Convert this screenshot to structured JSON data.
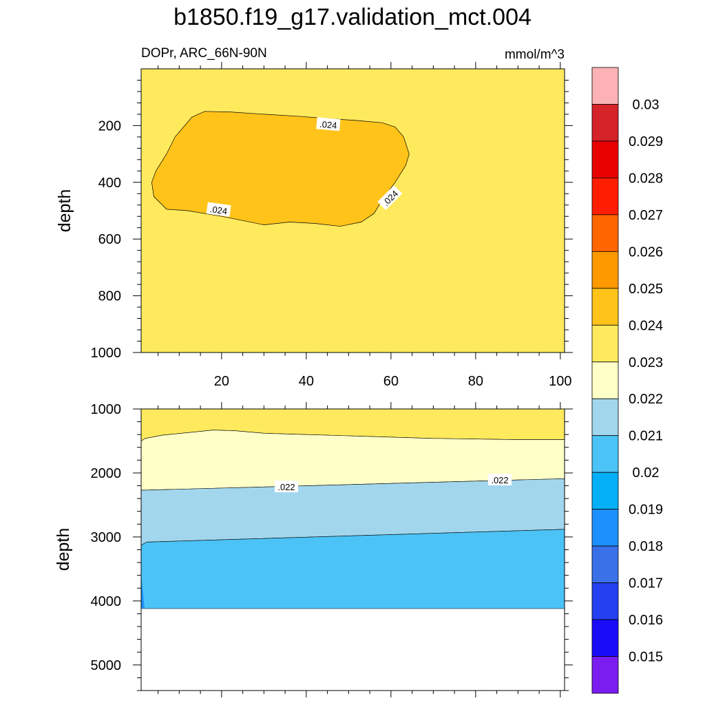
{
  "title": "b1850.f19_g17.validation_mct.004",
  "subtitle_left": "DOPr, ARC_66N-90N",
  "subtitle_right": "mmol/m^3",
  "colorbar": {
    "labels": [
      "0.03",
      "0.029",
      "0.028",
      "0.027",
      "0.026",
      "0.025",
      "0.024",
      "0.023",
      "0.022",
      "0.021",
      "0.02",
      "0.019",
      "0.018",
      "0.017",
      "0.016",
      "0.015"
    ],
    "colors": [
      "#fdb2b5",
      "#d5232a",
      "#e60000",
      "#ff1e00",
      "#ff6600",
      "#ff9900",
      "#ffc31a",
      "#ffea5d",
      "#ffffc8",
      "#a2d6ed",
      "#4bc3f6",
      "#03b0f8",
      "#1e90fd",
      "#3a70e8",
      "#2540f0",
      "#1a0cf6",
      "#7b1df0"
    ]
  },
  "chart_data": [
    {
      "type": "contour",
      "panel": "top",
      "xlabel": "",
      "ylabel": "depth",
      "xlim": [
        1,
        101
      ],
      "ylim": [
        1000,
        0
      ],
      "xticks": [
        "20",
        "40",
        "60",
        "80",
        "100"
      ],
      "yticks": [
        "200",
        "400",
        "600",
        "800",
        "1000"
      ],
      "background_level": "0.023-0.024",
      "contour_labels": [
        ".024",
        ".024",
        ".024"
      ],
      "regions": [
        {
          "level": "0.024-0.025",
          "color": "#ffc31a",
          "x_range": [
            4,
            65
          ],
          "depth_range": [
            150,
            560
          ]
        }
      ]
    },
    {
      "type": "contour",
      "panel": "bottom",
      "xlabel": "",
      "ylabel": "depth",
      "xlim": [
        1,
        101
      ],
      "ylim": [
        5400,
        1000
      ],
      "yticks": [
        "1000",
        "2000",
        "3000",
        "4000",
        "5000"
      ],
      "bottom_depth": 4120,
      "contour_labels": [
        ".022",
        ".022"
      ],
      "bands": [
        {
          "level": "0.023-0.024",
          "color": "#ffea5d",
          "top_depth": [
            1000,
            1000
          ],
          "bottom_depth": [
            1500,
            1480
          ]
        },
        {
          "level": "0.022-0.023",
          "color": "#ffffc8",
          "top_depth": [
            1500,
            1480
          ],
          "bottom_depth": [
            2270,
            2090
          ]
        },
        {
          "level": "0.021-0.022",
          "color": "#a2d6ed",
          "top_depth": [
            2270,
            2090
          ],
          "bottom_depth": [
            3080,
            2880
          ]
        },
        {
          "level": "0.020-0.021",
          "color": "#4bc3f6",
          "top_depth": [
            3080,
            2880
          ],
          "bottom_depth": [
            4120,
            4120
          ]
        }
      ]
    }
  ]
}
